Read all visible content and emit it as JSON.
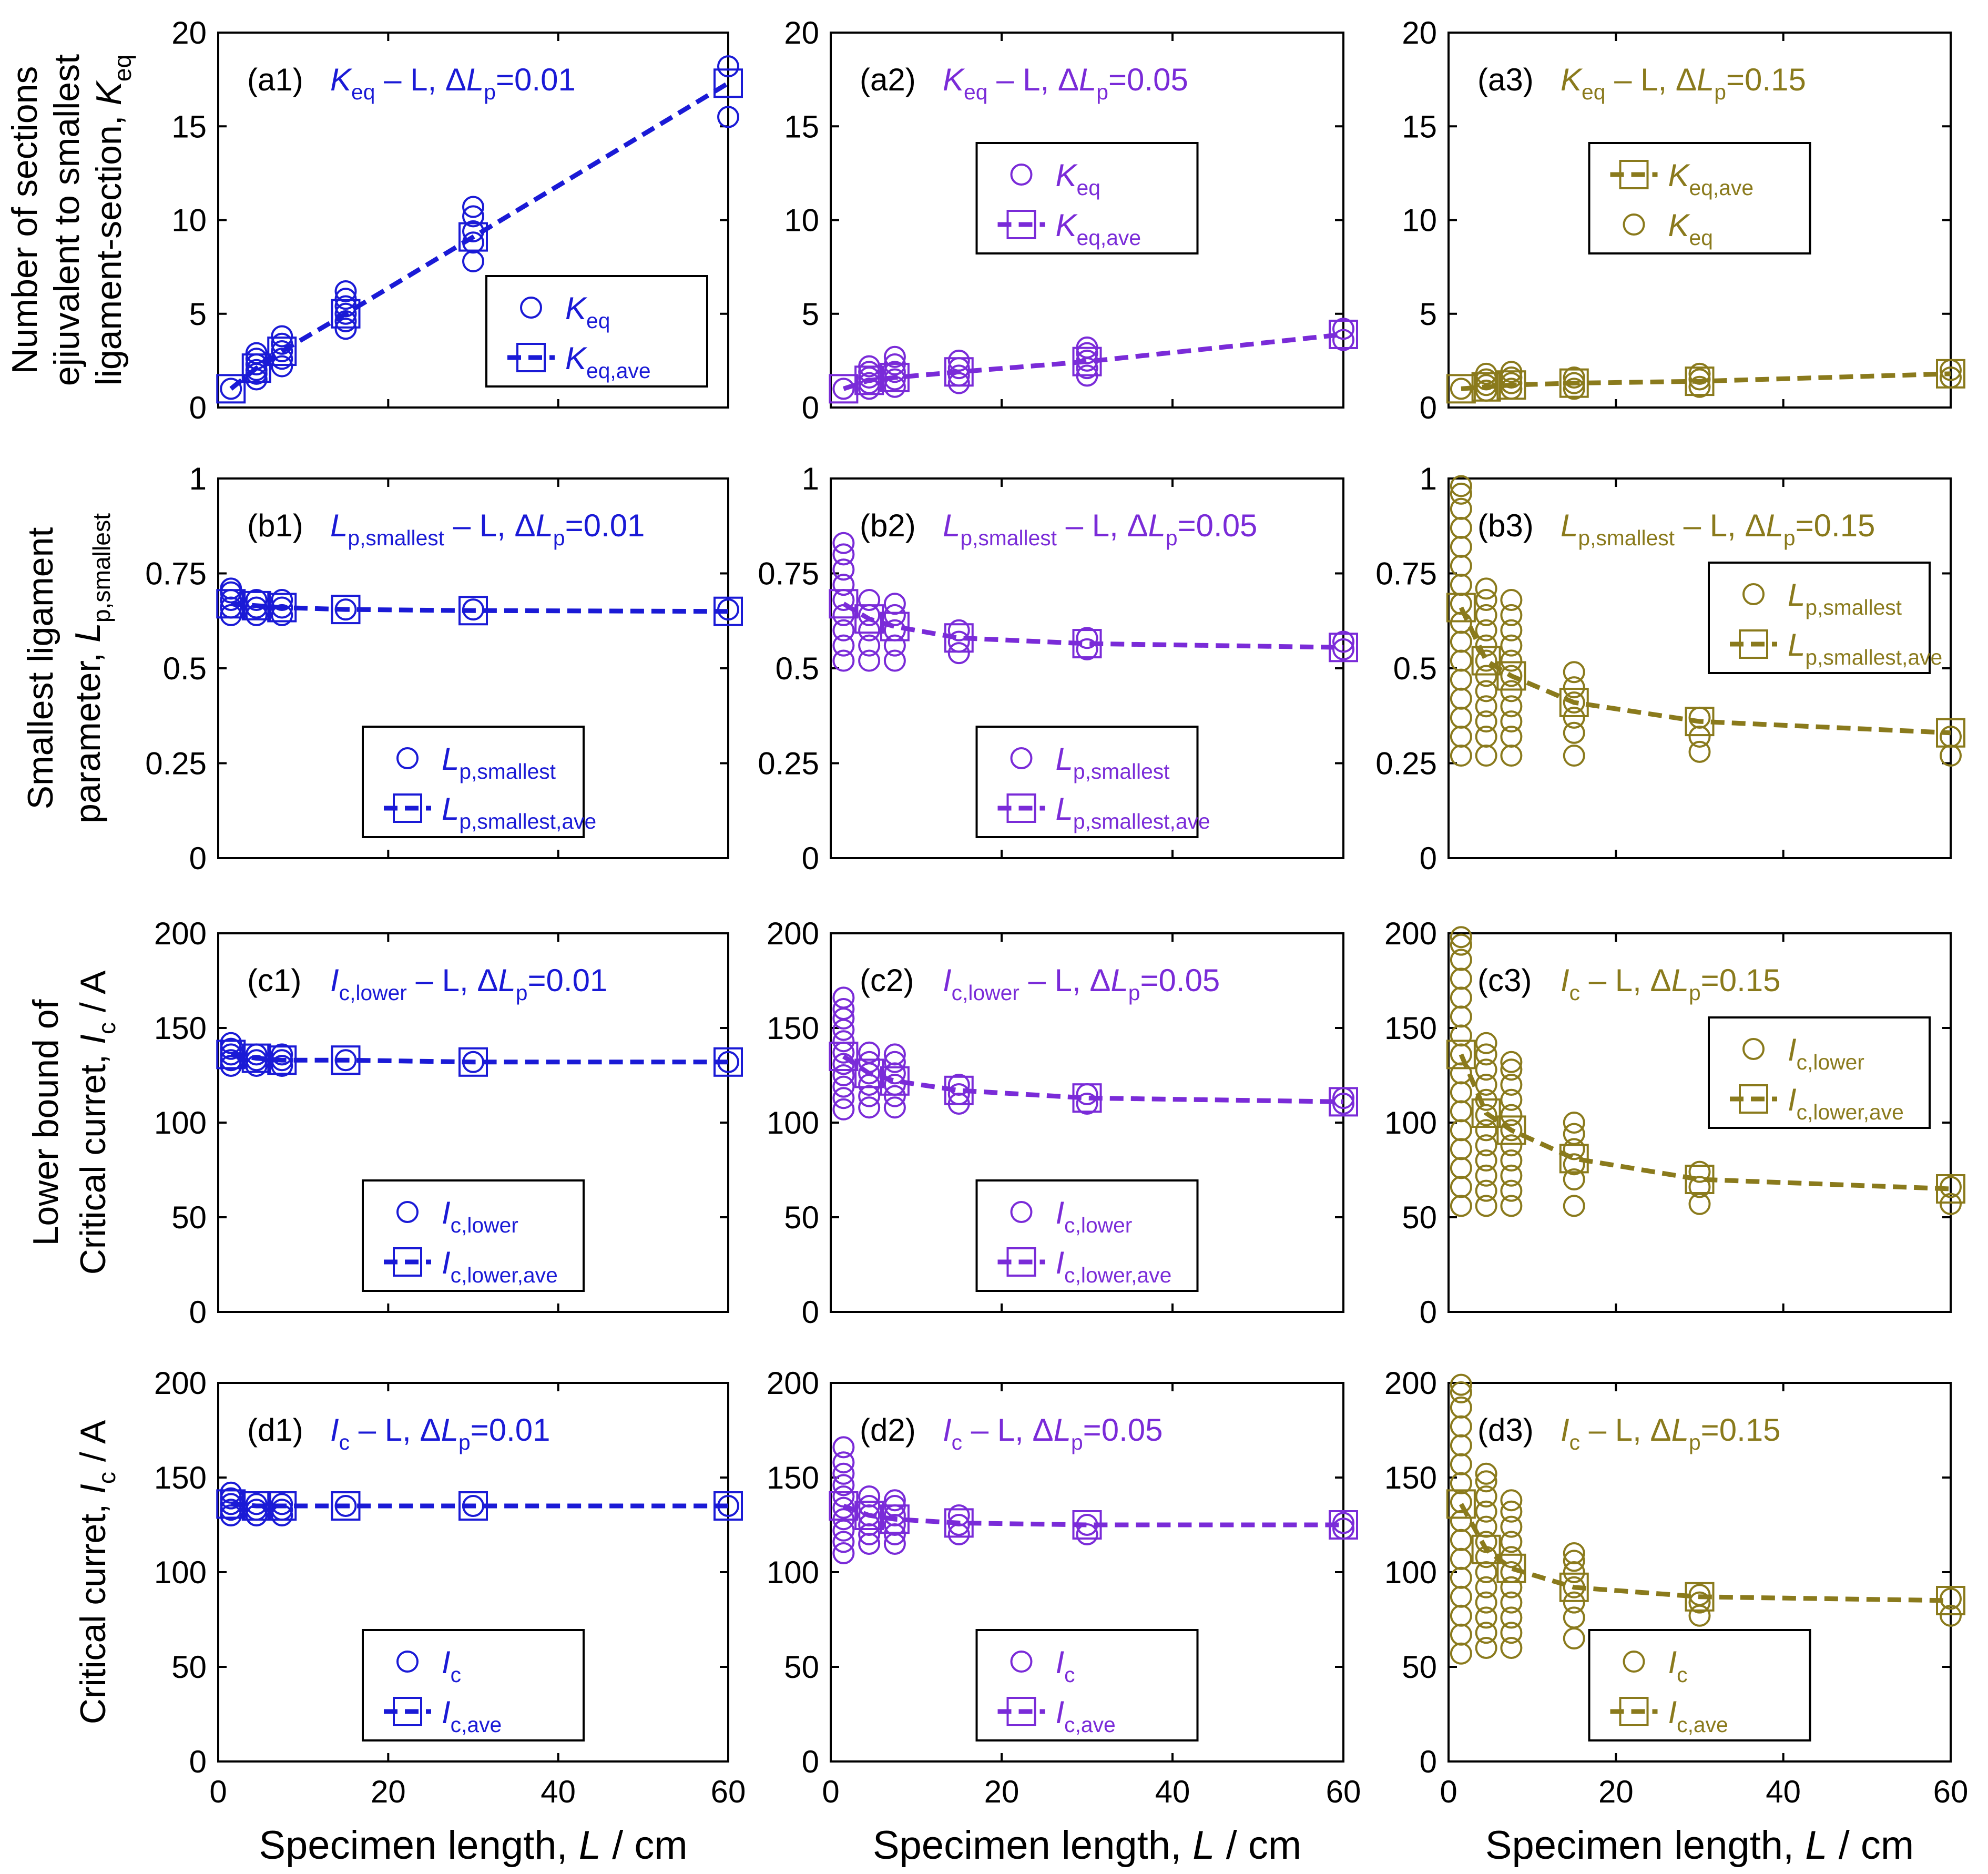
{
  "figure": {
    "x_axis_label": "Specimen length, L / cm",
    "row_ylabels": [
      [
        "Number of sections",
        "ejiuvalent to smallest",
        "ligament-section, K_eq"
      ],
      [
        "Smallest ligament",
        "parameter, L_p,smallest"
      ],
      [
        "Lower bound of",
        "Critical curret, I_c / A"
      ],
      [
        "Critical curret, I_c / A"
      ]
    ],
    "colors": {
      "col1": "#1a1ad6",
      "col2": "#7a2bd8",
      "col3": "#8a7a1c"
    }
  },
  "chart_data": [
    {
      "id": "a1",
      "type": "scatter",
      "title": "(a1) K_eq – L, ΔL_p=0.01",
      "xlim": [
        0,
        60
      ],
      "ylim": [
        0,
        20
      ],
      "xticks": [
        0,
        20,
        40,
        60
      ],
      "yticks": [
        0,
        5,
        10,
        15,
        20
      ],
      "x": [
        1.5,
        4.5,
        7.5,
        15,
        30,
        60
      ],
      "scatter": [
        [
          1.0
        ],
        [
          1.5,
          1.8,
          2.0,
          2.3,
          2.6,
          2.9
        ],
        [
          2.2,
          2.6,
          3.0,
          3.4,
          3.8
        ],
        [
          4.2,
          4.6,
          5.0,
          5.4,
          5.8,
          6.2
        ],
        [
          7.8,
          8.8,
          9.4,
          10.2,
          10.7
        ],
        [
          15.5,
          18.2
        ]
      ],
      "average": [
        1.0,
        2.1,
        3.0,
        5.0,
        9.1,
        17.3
      ],
      "legend": {
        "position": "bottom-right",
        "entries": [
          "K_eq",
          "K_eq,ave"
        ],
        "order": [
          "circle",
          "square"
        ]
      }
    },
    {
      "id": "a2",
      "type": "scatter",
      "title": "(a2) K_eq – L, ΔL_p=0.05",
      "xlim": [
        0,
        60
      ],
      "ylim": [
        0,
        20
      ],
      "xticks": [
        0,
        20,
        40,
        60
      ],
      "yticks": [
        0,
        5,
        10,
        15,
        20
      ],
      "x": [
        1.5,
        4.5,
        7.5,
        15,
        30,
        60
      ],
      "scatter": [
        [
          1.0
        ],
        [
          1.0,
          1.3,
          1.6,
          1.9,
          2.2
        ],
        [
          1.1,
          1.5,
          1.9,
          2.3,
          2.7
        ],
        [
          1.3,
          1.7,
          2.1,
          2.5
        ],
        [
          1.7,
          2.1,
          2.5,
          2.9,
          3.2
        ],
        [
          3.6,
          4.2
        ]
      ],
      "average": [
        1.0,
        1.45,
        1.6,
        1.9,
        2.45,
        3.9
      ],
      "legend": {
        "position": "top-center",
        "entries": [
          "K_eq",
          "K_eq,ave"
        ],
        "order": [
          "circle",
          "square"
        ]
      }
    },
    {
      "id": "a3",
      "type": "scatter",
      "title": "(a3) K_eq – L, ΔL_p=0.15",
      "xlim": [
        0,
        60
      ],
      "ylim": [
        0,
        20
      ],
      "xticks": [
        0,
        20,
        40,
        60
      ],
      "yticks": [
        0,
        5,
        10,
        15,
        20
      ],
      "x": [
        1.5,
        4.5,
        7.5,
        15,
        30,
        60
      ],
      "scatter": [
        [
          1.0
        ],
        [
          0.9,
          1.2,
          1.5,
          1.8
        ],
        [
          1.0,
          1.3,
          1.6,
          1.9
        ],
        [
          1.0,
          1.3,
          1.6
        ],
        [
          1.1,
          1.5,
          1.8
        ],
        [
          1.6,
          2.0
        ]
      ],
      "average": [
        1.0,
        1.1,
        1.2,
        1.3,
        1.4,
        1.8
      ],
      "legend": {
        "position": "top-center",
        "entries": [
          "K_eq,ave",
          "K_eq"
        ],
        "order": [
          "square",
          "circle"
        ]
      }
    },
    {
      "id": "b1",
      "type": "scatter",
      "title": "(b1) L_p,smallest – L, ΔL_p=0.01",
      "xlim": [
        0,
        60
      ],
      "ylim": [
        0,
        1
      ],
      "xticks": [
        0,
        20,
        40,
        60
      ],
      "yticks": [
        0,
        0.25,
        0.5,
        0.75,
        1
      ],
      "x": [
        1.5,
        4.5,
        7.5,
        15,
        30,
        60
      ],
      "scatter": [
        [
          0.64,
          0.66,
          0.68,
          0.7,
          0.71
        ],
        [
          0.64,
          0.66,
          0.68
        ],
        [
          0.64,
          0.66,
          0.68
        ],
        [
          0.655
        ],
        [
          0.655
        ],
        [
          0.655
        ]
      ],
      "average": [
        0.67,
        0.665,
        0.66,
        0.655,
        0.652,
        0.65
      ],
      "legend": {
        "position": "bottom-center",
        "entries": [
          "L_p,smallest",
          "L_p,smallest,ave"
        ],
        "order": [
          "circle",
          "square"
        ]
      }
    },
    {
      "id": "b2",
      "type": "scatter",
      "title": "(b2) L_p,smallest – L, ΔL_p=0.05",
      "xlim": [
        0,
        60
      ],
      "ylim": [
        0,
        1
      ],
      "xticks": [
        0,
        20,
        40,
        60
      ],
      "yticks": [
        0,
        0.25,
        0.5,
        0.75,
        1
      ],
      "x": [
        1.5,
        4.5,
        7.5,
        15,
        30,
        60
      ],
      "scatter": [
        [
          0.52,
          0.56,
          0.6,
          0.64,
          0.68,
          0.72,
          0.76,
          0.8,
          0.83
        ],
        [
          0.52,
          0.56,
          0.6,
          0.64,
          0.68
        ],
        [
          0.52,
          0.56,
          0.6,
          0.64,
          0.67
        ],
        [
          0.54,
          0.57,
          0.6
        ],
        [
          0.55,
          0.58
        ],
        [
          0.55,
          0.57
        ]
      ],
      "average": [
        0.67,
        0.63,
        0.61,
        0.58,
        0.565,
        0.555
      ],
      "legend": {
        "position": "bottom-center",
        "entries": [
          "L_p,smallest",
          "L_p,smallest,ave"
        ],
        "order": [
          "circle",
          "square"
        ]
      }
    },
    {
      "id": "b3",
      "type": "scatter",
      "title": "(b3) L_p,smallest – L, ΔL_p=0.15",
      "xlim": [
        0,
        60
      ],
      "ylim": [
        0,
        1
      ],
      "xticks": [
        0,
        20,
        40,
        60
      ],
      "yticks": [
        0,
        0.25,
        0.5,
        0.75,
        1
      ],
      "x": [
        1.5,
        4.5,
        7.5,
        15,
        30,
        60
      ],
      "scatter": [
        [
          0.27,
          0.32,
          0.37,
          0.42,
          0.47,
          0.52,
          0.57,
          0.62,
          0.67,
          0.72,
          0.77,
          0.82,
          0.87,
          0.92,
          0.96,
          0.98
        ],
        [
          0.27,
          0.32,
          0.36,
          0.4,
          0.44,
          0.48,
          0.52,
          0.56,
          0.6,
          0.64,
          0.68,
          0.71
        ],
        [
          0.27,
          0.32,
          0.36,
          0.4,
          0.44,
          0.48,
          0.52,
          0.56,
          0.6,
          0.64,
          0.68
        ],
        [
          0.27,
          0.33,
          0.37,
          0.41,
          0.45,
          0.49
        ],
        [
          0.28,
          0.32,
          0.37
        ],
        [
          0.27,
          0.32
        ]
      ],
      "average": [
        0.66,
        0.52,
        0.48,
        0.41,
        0.36,
        0.33
      ],
      "legend": {
        "position": "top-right",
        "entries": [
          "L_p,smallest",
          "L_p,smallest,ave"
        ],
        "order": [
          "circle",
          "square"
        ]
      }
    },
    {
      "id": "c1",
      "type": "scatter",
      "title": "(c1) I_c,lower – L, ΔL_p=0.01",
      "xlim": [
        0,
        60
      ],
      "ylim": [
        0,
        200
      ],
      "xticks": [
        0,
        20,
        40,
        60
      ],
      "yticks": [
        0,
        50,
        100,
        150,
        200
      ],
      "x": [
        1.5,
        4.5,
        7.5,
        15,
        30,
        60
      ],
      "scatter": [
        [
          130,
          133,
          136,
          139,
          142
        ],
        [
          130,
          133,
          136
        ],
        [
          130,
          133,
          136
        ],
        [
          133
        ],
        [
          132
        ],
        [
          132
        ]
      ],
      "average": [
        136,
        134,
        133,
        133,
        132,
        132
      ],
      "legend": {
        "position": "bottom-center",
        "entries": [
          "I_c,lower",
          "I_c,lower,ave"
        ],
        "order": [
          "circle",
          "square"
        ]
      }
    },
    {
      "id": "c2",
      "type": "scatter",
      "title": "(c2) I_c,lower – L, ΔL_p=0.05",
      "xlim": [
        0,
        60
      ],
      "ylim": [
        0,
        200
      ],
      "xticks": [
        0,
        20,
        40,
        60
      ],
      "yticks": [
        0,
        50,
        100,
        150,
        200
      ],
      "x": [
        1.5,
        4.5,
        7.5,
        15,
        30,
        60
      ],
      "scatter": [
        [
          107,
          113,
          119,
          125,
          131,
          137,
          143,
          149,
          155,
          160,
          166
        ],
        [
          108,
          114,
          120,
          126,
          132,
          137
        ],
        [
          108,
          114,
          120,
          126,
          132,
          136
        ],
        [
          110,
          115,
          120
        ],
        [
          110,
          115
        ],
        [
          110,
          113
        ]
      ],
      "average": [
        135,
        126,
        122,
        117,
        113,
        111
      ],
      "legend": {
        "position": "bottom-center",
        "entries": [
          "I_c,lower",
          "I_c,lower,ave"
        ],
        "order": [
          "circle",
          "square"
        ]
      }
    },
    {
      "id": "c3",
      "type": "scatter",
      "title": "(c3) I_c – L, ΔL_p=0.15",
      "xlim": [
        0,
        60
      ],
      "ylim": [
        0,
        200
      ],
      "xticks": [
        0,
        20,
        40,
        60
      ],
      "yticks": [
        0,
        50,
        100,
        150,
        200
      ],
      "x": [
        1.5,
        4.5,
        7.5,
        15,
        30,
        60
      ],
      "scatter": [
        [
          56,
          66,
          76,
          86,
          96,
          106,
          116,
          126,
          136,
          146,
          156,
          166,
          176,
          186,
          194,
          198
        ],
        [
          56,
          64,
          72,
          80,
          88,
          96,
          104,
          112,
          120,
          128,
          136,
          142
        ],
        [
          56,
          64,
          72,
          80,
          88,
          96,
          104,
          112,
          120,
          128,
          132
        ],
        [
          56,
          70,
          78,
          86,
          94,
          100
        ],
        [
          57,
          66,
          74
        ],
        [
          57,
          66
        ]
      ],
      "average": [
        136,
        105,
        96,
        81,
        70,
        65
      ],
      "legend": {
        "position": "top-right",
        "entries": [
          "I_c,lower",
          "I_c,lower,ave"
        ],
        "order": [
          "circle",
          "square"
        ]
      }
    },
    {
      "id": "d1",
      "type": "scatter",
      "title": "(d1) I_c – L, ΔL_p=0.01",
      "xlim": [
        0,
        60
      ],
      "ylim": [
        0,
        200
      ],
      "xticks": [
        0,
        20,
        40,
        60
      ],
      "yticks": [
        0,
        50,
        100,
        150,
        200
      ],
      "x": [
        1.5,
        4.5,
        7.5,
        15,
        30,
        60
      ],
      "scatter": [
        [
          130,
          133,
          136,
          139,
          142
        ],
        [
          130,
          133,
          136
        ],
        [
          130,
          133,
          136
        ],
        [
          135
        ],
        [
          135
        ],
        [
          135
        ]
      ],
      "average": [
        136,
        135,
        135,
        135,
        135,
        135
      ],
      "legend": {
        "position": "bottom-center",
        "entries": [
          "I_c",
          "I_c,ave"
        ],
        "order": [
          "circle",
          "square"
        ]
      }
    },
    {
      "id": "d2",
      "type": "scatter",
      "title": "(d2) I_c – L, ΔL_p=0.05",
      "xlim": [
        0,
        60
      ],
      "ylim": [
        0,
        200
      ],
      "xticks": [
        0,
        20,
        40,
        60
      ],
      "yticks": [
        0,
        50,
        100,
        150,
        200
      ],
      "x": [
        1.5,
        4.5,
        7.5,
        15,
        30,
        60
      ],
      "scatter": [
        [
          110,
          116,
          122,
          128,
          134,
          140,
          146,
          152,
          158,
          166
        ],
        [
          115,
          120,
          125,
          130,
          135,
          140
        ],
        [
          115,
          120,
          125,
          130,
          135,
          138
        ],
        [
          120,
          125,
          130
        ],
        [
          120,
          125
        ],
        [
          123,
          126
        ]
      ],
      "average": [
        135,
        130,
        128,
        126,
        125,
        125
      ],
      "legend": {
        "position": "bottom-center",
        "entries": [
          "I_c",
          "I_c,ave"
        ],
        "order": [
          "circle",
          "square"
        ]
      }
    },
    {
      "id": "d3",
      "type": "scatter",
      "title": "(d3) I_c – L, ΔL_p=0.15",
      "xlim": [
        0,
        60
      ],
      "ylim": [
        0,
        200
      ],
      "xticks": [
        0,
        20,
        40,
        60
      ],
      "yticks": [
        0,
        50,
        100,
        150,
        200
      ],
      "x": [
        1.5,
        4.5,
        7.5,
        15,
        30,
        60
      ],
      "scatter": [
        [
          57,
          67,
          77,
          87,
          97,
          107,
          117,
          127,
          137,
          147,
          157,
          167,
          177,
          187,
          195,
          199
        ],
        [
          60,
          68,
          76,
          84,
          92,
          100,
          108,
          116,
          124,
          132,
          140,
          148,
          152
        ],
        [
          60,
          68,
          76,
          84,
          92,
          100,
          108,
          116,
          124,
          132,
          138
        ],
        [
          65,
          76,
          84,
          92,
          100,
          106,
          110
        ],
        [
          77,
          84,
          88
        ],
        [
          77,
          86
        ]
      ],
      "average": [
        136,
        112,
        102,
        92,
        87,
        85
      ],
      "legend": {
        "position": "bottom-center",
        "entries": [
          "I_c",
          "I_c,ave"
        ],
        "order": [
          "circle",
          "square"
        ]
      }
    }
  ]
}
